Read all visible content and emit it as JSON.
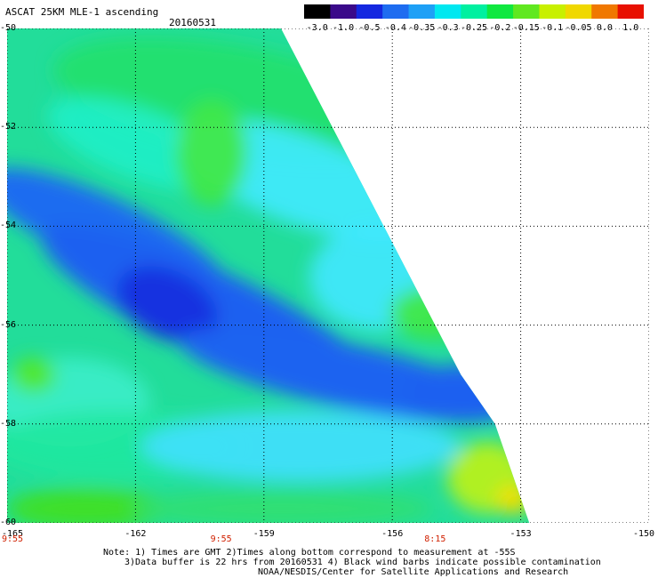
{
  "header": {
    "title": "ASCAT 25KM MLE-1 ascending",
    "date": "20160531"
  },
  "colorbar": {
    "labels": [
      "-3.0",
      "-1.0",
      "-0.5",
      "-0.4",
      "-0.35",
      "-0.3",
      "-0.25",
      "-0.2",
      "-0.15",
      "-0.1",
      "-0.05",
      "0.0",
      "1.0"
    ],
    "colors": [
      "#000000",
      "#3a0a8a",
      "#1428e0",
      "#1e6cf0",
      "#1ea0f6",
      "#00e8f0",
      "#00f0a0",
      "#10e840",
      "#60e820",
      "#c8f000",
      "#f0d800",
      "#f07800",
      "#e81000"
    ]
  },
  "map": {
    "lon_range": [
      -165,
      -150
    ],
    "lat_range": [
      -60,
      -50
    ],
    "lat_ticks": [
      "-50",
      "-52",
      "-54",
      "-56",
      "-58",
      "-60"
    ],
    "lon_ticks": [
      "-165",
      "-162",
      "-159",
      "-156",
      "-153",
      "-150"
    ],
    "pass_times": [
      {
        "lon": -165,
        "label": "9:55"
      },
      {
        "lon": -160,
        "label": "9:55"
      },
      {
        "lon": -155,
        "label": "8:15"
      }
    ],
    "swath_edge": [
      [
        -152.8,
        -60
      ],
      [
        -153.2,
        -59
      ],
      [
        -153.6,
        -58
      ],
      [
        -154.4,
        -57
      ],
      [
        -155.0,
        -56
      ],
      [
        -155.6,
        -55
      ],
      [
        -156.2,
        -54
      ],
      [
        -156.8,
        -53
      ],
      [
        -157.4,
        -52
      ],
      [
        -158.0,
        -51
      ],
      [
        -158.6,
        -50
      ]
    ]
  },
  "notes": {
    "line1": "Note: 1) Times are GMT 2)Times along bottom correspond to measurement at -55S",
    "line2": "3)Data buffer is 22 hrs from 20160531 4) Black wind barbs indicate possible contamination",
    "line3": "NOAA/NESDIS/Center for Satellite Applications and Research"
  }
}
